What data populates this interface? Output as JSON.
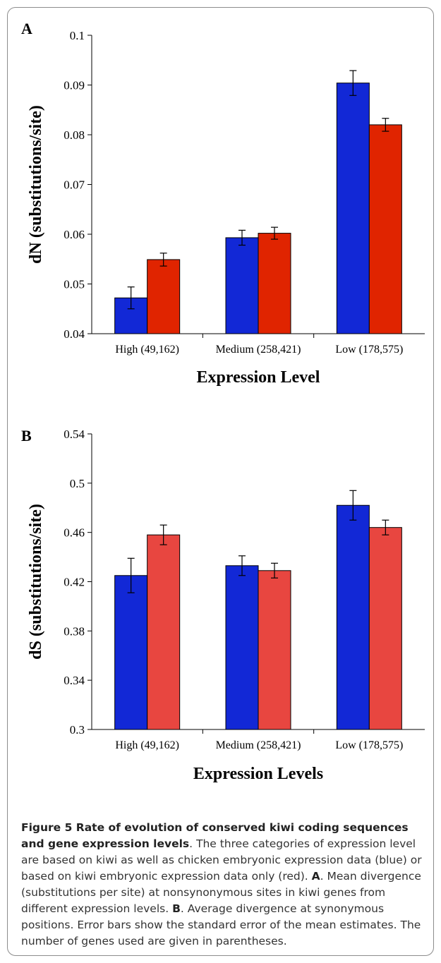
{
  "chart_data": [
    {
      "type": "bar",
      "panel": "A",
      "categories": [
        "High (49,162)",
        "Medium (258,421)",
        "Low (178,575)"
      ],
      "series": [
        {
          "color": "#1228d6",
          "values": [
            0.0472,
            0.0593,
            0.0904
          ],
          "errors": [
            0.0022,
            0.0015,
            0.0025
          ]
        },
        {
          "color": "#e02400",
          "values": [
            0.0549,
            0.0602,
            0.082
          ],
          "errors": [
            0.0013,
            0.0012,
            0.0013
          ]
        }
      ],
      "ylabel": "dN (substitutions/site)",
      "xlabel": "Expression Level",
      "ylim": [
        0.04,
        0.1
      ],
      "yticks": [
        "0.04",
        "0.05",
        "0.06",
        "0.07",
        "0.08",
        "0.09",
        "0.1"
      ],
      "grid": false
    },
    {
      "type": "bar",
      "panel": "B",
      "categories": [
        "High (49,162)",
        "Medium (258,421)",
        "Low (178,575)"
      ],
      "series": [
        {
          "color": "#1228d6",
          "values": [
            0.425,
            0.433,
            0.482
          ],
          "errors": [
            0.014,
            0.008,
            0.012
          ]
        },
        {
          "color": "#e84640",
          "values": [
            0.458,
            0.429,
            0.464
          ],
          "errors": [
            0.008,
            0.006,
            0.006
          ]
        }
      ],
      "ylabel": "dS (substitutions/site)",
      "xlabel": "Expression Levels",
      "ylim": [
        0.3,
        0.54
      ],
      "yticks": [
        "0.3",
        "0.34",
        "0.38",
        "0.42",
        "0.46",
        "0.5",
        "0.54"
      ],
      "grid": false
    }
  ],
  "caption": {
    "title": "Figure 5 Rate of evolution of conserved kiwi coding sequences and gene expression levels",
    "p1": ". The three categories of expression level are based on kiwi as well as chicken embryonic expression data (blue) or based on kiwi embryonic expression data only (red). ",
    "a_label": "A",
    "p2": ". Mean divergence (substitutions per site) at nonsynonymous sites in kiwi genes from different expression levels. ",
    "b_label": "B",
    "p3": ". Average divergence at synonymous positions. Error bars show the standard error of the mean estimates. The number of genes used are given in parentheses."
  }
}
